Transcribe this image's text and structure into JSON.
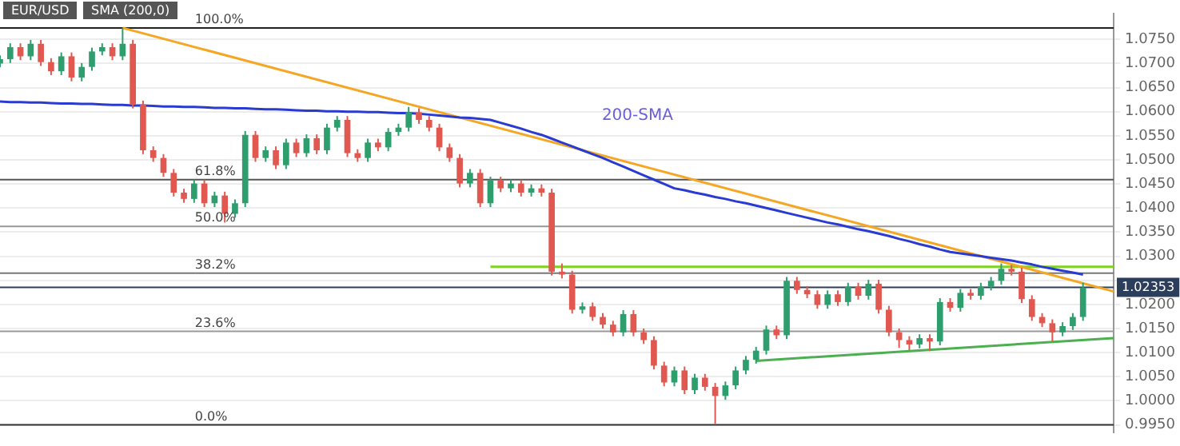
{
  "chart_data": {
    "type": "candlestick",
    "categories": [
      null,
      null,
      null,
      null,
      null,
      null,
      null,
      null,
      null,
      null,
      null,
      null,
      null,
      null,
      null,
      null,
      null,
      null,
      null,
      null,
      null,
      null,
      null,
      null,
      null,
      null,
      null,
      null,
      null,
      null,
      null,
      null,
      null,
      null,
      null,
      null,
      null,
      null,
      null,
      null,
      null,
      null,
      null,
      null,
      null,
      null,
      null,
      null,
      null,
      null,
      null,
      null,
      null,
      null,
      null,
      null,
      null,
      null,
      null,
      null,
      null,
      null,
      null,
      null,
      null,
      null,
      null,
      null,
      null,
      null,
      null,
      null,
      null,
      null,
      null,
      null,
      null,
      null,
      null,
      null,
      null,
      null,
      null,
      null,
      null,
      null,
      null,
      null,
      null,
      null,
      null,
      null,
      null,
      null,
      null,
      null,
      null,
      null,
      null,
      null,
      null,
      null,
      null,
      null,
      null,
      null,
      null,
      null,
      null,
      null
    ],
    "ohlc": [
      [
        1.07,
        1.0717,
        1.0692,
        1.0709
      ],
      [
        1.0709,
        1.0742,
        1.0701,
        1.0734
      ],
      [
        1.0734,
        1.0742,
        1.0707,
        1.0715
      ],
      [
        1.0715,
        1.0749,
        1.0707,
        1.0741
      ],
      [
        1.0741,
        1.0749,
        1.0695,
        1.0703
      ],
      [
        1.0703,
        1.0711,
        1.0676,
        1.0684
      ],
      [
        1.0684,
        1.0723,
        1.0676,
        1.0715
      ],
      [
        1.0715,
        1.0723,
        1.0663,
        1.0671
      ],
      [
        1.0671,
        1.0701,
        1.0663,
        1.0693
      ],
      [
        1.0693,
        1.0733,
        1.0685,
        1.0725
      ],
      [
        1.0725,
        1.0742,
        1.0717,
        1.0734
      ],
      [
        1.0734,
        1.0742,
        1.0707,
        1.0715
      ],
      [
        1.0715,
        1.0774,
        1.0707,
        1.0741
      ],
      [
        1.0741,
        1.0749,
        1.0607,
        1.0615
      ],
      [
        1.0615,
        1.0623,
        1.0512,
        1.052
      ],
      [
        1.052,
        1.0528,
        1.0496,
        1.0504
      ],
      [
        1.0504,
        1.0512,
        1.0465,
        1.0473
      ],
      [
        1.0473,
        1.0481,
        1.0424,
        1.0432
      ],
      [
        1.0432,
        1.044,
        1.0411,
        1.0419
      ],
      [
        1.0419,
        1.0459,
        1.0411,
        1.0451
      ],
      [
        1.0451,
        1.0459,
        1.0402,
        1.041
      ],
      [
        1.041,
        1.0434,
        1.0402,
        1.0426
      ],
      [
        1.0426,
        1.0434,
        1.037,
        1.0388
      ],
      [
        1.0388,
        1.0418,
        1.038,
        1.041
      ],
      [
        1.041,
        1.056,
        1.0402,
        1.0552
      ],
      [
        1.0552,
        1.056,
        1.0496,
        1.0504
      ],
      [
        1.0504,
        1.0528,
        1.0496,
        1.052
      ],
      [
        1.052,
        1.0528,
        1.0481,
        1.0489
      ],
      [
        1.0489,
        1.0544,
        1.0481,
        1.0536
      ],
      [
        1.0536,
        1.0544,
        1.0506,
        1.0514
      ],
      [
        1.0514,
        1.0553,
        1.0506,
        1.0545
      ],
      [
        1.0545,
        1.0553,
        1.0512,
        1.052
      ],
      [
        1.052,
        1.0575,
        1.0512,
        1.0567
      ],
      [
        1.0567,
        1.0591,
        1.0559,
        1.0583
      ],
      [
        1.0583,
        1.0591,
        1.0506,
        1.0514
      ],
      [
        1.0514,
        1.0522,
        1.0496,
        1.0504
      ],
      [
        1.0504,
        1.0544,
        1.0496,
        1.0536
      ],
      [
        1.0536,
        1.0544,
        1.0518,
        1.0526
      ],
      [
        1.0526,
        1.0566,
        1.0518,
        1.0558
      ],
      [
        1.0558,
        1.0575,
        1.055,
        1.0567
      ],
      [
        1.0567,
        1.061,
        1.0559,
        1.0599
      ],
      [
        1.0599,
        1.0607,
        1.0575,
        1.0583
      ],
      [
        1.0583,
        1.0591,
        1.0559,
        1.0567
      ],
      [
        1.0567,
        1.0575,
        1.0518,
        1.0526
      ],
      [
        1.0526,
        1.0534,
        1.0496,
        1.0504
      ],
      [
        1.0504,
        1.0512,
        1.0443,
        1.0451
      ],
      [
        1.0451,
        1.0481,
        1.0443,
        1.0473
      ],
      [
        1.0473,
        1.0481,
        1.0402,
        1.041
      ],
      [
        1.041,
        1.0465,
        1.0402,
        1.0457
      ],
      [
        1.0457,
        1.0465,
        1.0433,
        1.0441
      ],
      [
        1.0441,
        1.0459,
        1.0433,
        1.0451
      ],
      [
        1.0451,
        1.0459,
        1.0424,
        1.0432
      ],
      [
        1.0432,
        1.0449,
        1.0424,
        1.0441
      ],
      [
        1.0441,
        1.0449,
        1.0424,
        1.0432
      ],
      [
        1.0432,
        1.044,
        1.026,
        1.0268
      ],
      [
        1.0268,
        1.0285,
        1.0254,
        1.0262
      ],
      [
        1.0262,
        1.027,
        1.0181,
        1.0189
      ],
      [
        1.0189,
        1.0204,
        1.0181,
        1.0196
      ],
      [
        1.0196,
        1.0204,
        1.0166,
        1.0174
      ],
      [
        1.0174,
        1.0182,
        1.015,
        1.0158
      ],
      [
        1.0158,
        1.0166,
        1.0134,
        1.0142
      ],
      [
        1.0142,
        1.0188,
        1.0134,
        1.018
      ],
      [
        1.018,
        1.0188,
        1.0134,
        1.0142
      ],
      [
        1.0142,
        1.015,
        1.0118,
        1.0126
      ],
      [
        1.0126,
        1.0134,
        1.0065,
        1.0073
      ],
      [
        1.0073,
        1.0081,
        1.003,
        1.0038
      ],
      [
        1.0038,
        1.0071,
        1.003,
        1.0063
      ],
      [
        1.0063,
        1.0071,
        1.0014,
        1.0022
      ],
      [
        1.0022,
        1.0056,
        1.0014,
        1.0048
      ],
      [
        1.0048,
        1.0056,
        1.0021,
        1.0029
      ],
      [
        1.0029,
        1.0037,
        0.9952,
        1.001
      ],
      [
        1.001,
        1.004,
        1.0002,
        1.0032
      ],
      [
        1.0032,
        1.0071,
        1.0024,
        1.0063
      ],
      [
        1.0063,
        1.0093,
        1.0055,
        1.0085
      ],
      [
        1.0085,
        1.0112,
        1.0077,
        1.0104
      ],
      [
        1.0104,
        1.0156,
        1.0096,
        1.0148
      ],
      [
        1.0148,
        1.0156,
        1.0128,
        1.0136
      ],
      [
        1.0136,
        1.0257,
        1.0128,
        1.0249
      ],
      [
        1.0249,
        1.0257,
        1.0222,
        1.023
      ],
      [
        1.023,
        1.0238,
        1.0213,
        1.0221
      ],
      [
        1.0221,
        1.0229,
        1.0191,
        1.0199
      ],
      [
        1.0199,
        1.0229,
        1.0191,
        1.0221
      ],
      [
        1.0221,
        1.0229,
        1.0197,
        1.0205
      ],
      [
        1.0205,
        1.0245,
        1.0197,
        1.0237
      ],
      [
        1.0237,
        1.0245,
        1.021,
        1.0218
      ],
      [
        1.0218,
        1.0251,
        1.021,
        1.0243
      ],
      [
        1.0243,
        1.0251,
        1.0181,
        1.0189
      ],
      [
        1.0189,
        1.0197,
        1.0134,
        1.0142
      ],
      [
        1.0142,
        1.015,
        1.011,
        1.0126
      ],
      [
        1.0126,
        1.0134,
        1.0105,
        1.0117
      ],
      [
        1.0117,
        1.0138,
        1.0109,
        1.013
      ],
      [
        1.013,
        1.0138,
        1.0103,
        1.0123
      ],
      [
        1.0123,
        1.0213,
        1.0115,
        1.0205
      ],
      [
        1.0205,
        1.0213,
        1.0185,
        1.0193
      ],
      [
        1.0193,
        1.0232,
        1.0185,
        1.0224
      ],
      [
        1.0224,
        1.0232,
        1.021,
        1.0218
      ],
      [
        1.0218,
        1.0245,
        1.021,
        1.0237
      ],
      [
        1.0237,
        1.0257,
        1.0229,
        1.0249
      ],
      [
        1.0249,
        1.0285,
        1.0241,
        1.0274
      ],
      [
        1.0274,
        1.0282,
        1.026,
        1.0268
      ],
      [
        1.0268,
        1.0276,
        1.0203,
        1.0211
      ],
      [
        1.0211,
        1.0219,
        1.0166,
        1.0174
      ],
      [
        1.0174,
        1.0182,
        1.0153,
        1.0161
      ],
      [
        1.0161,
        1.0169,
        1.0122,
        1.0142
      ],
      [
        1.0142,
        1.0163,
        1.0134,
        1.0155
      ],
      [
        1.0155,
        1.0182,
        1.0147,
        1.0174
      ],
      [
        1.0174,
        1.0245,
        1.0166,
        1.0235
      ],
      null,
      null,
      null
    ],
    "series": [
      {
        "type": "line",
        "name": "200-SMA",
        "color": "#2a3bd1",
        "values": [
          1.0621,
          1.062,
          1.062,
          1.0619,
          1.0619,
          1.0618,
          1.0617,
          1.0617,
          1.0616,
          1.0616,
          1.0615,
          1.0614,
          1.0614,
          1.0613,
          1.0613,
          1.0612,
          1.0611,
          1.0611,
          1.061,
          1.061,
          1.0609,
          1.0608,
          1.0608,
          1.0607,
          1.0607,
          1.0606,
          1.0605,
          1.0605,
          1.0604,
          1.0603,
          1.0602,
          1.0602,
          1.0601,
          1.0601,
          1.06,
          1.06,
          1.0599,
          1.0599,
          1.0598,
          1.0597,
          1.0597,
          1.0596,
          1.0594,
          1.0592,
          1.059,
          1.0588,
          1.0587,
          1.0585,
          1.0583,
          1.0577,
          1.0571,
          1.0565,
          1.0558,
          1.0552,
          1.0544,
          1.0536,
          1.0528,
          1.052,
          1.0512,
          1.0504,
          1.0495,
          1.0486,
          1.0477,
          1.0468,
          1.0459,
          1.045,
          1.0441,
          1.0437,
          1.0432,
          1.0428,
          1.0423,
          1.0419,
          1.0414,
          1.041,
          1.0405,
          1.04,
          1.0395,
          1.039,
          1.0385,
          1.038,
          1.0375,
          1.037,
          1.0366,
          1.0361,
          1.0356,
          1.0352,
          1.0347,
          1.0342,
          1.0336,
          1.0331,
          1.0325,
          1.032,
          1.0314,
          1.0309,
          1.0306,
          1.0303,
          1.03,
          1.0297,
          1.0294,
          1.0291,
          1.0287,
          1.0283,
          1.0278,
          1.0274,
          1.027,
          1.0266,
          1.0262,
          null,
          null,
          null
        ]
      },
      {
        "type": "line",
        "color": "#f5a623",
        "values": [
          null,
          null,
          null,
          null,
          null,
          null,
          null,
          null,
          null,
          null,
          null,
          null,
          1.0774,
          null,
          null,
          null,
          null,
          null,
          null,
          null,
          null,
          null,
          null,
          null,
          null,
          null,
          null,
          null,
          null,
          null,
          null,
          null,
          null,
          null,
          null,
          null,
          null,
          null,
          null,
          null,
          null,
          null,
          null,
          null,
          null,
          null,
          null,
          null,
          null,
          null,
          null,
          null,
          null,
          null,
          null,
          null,
          null,
          null,
          null,
          null,
          null,
          null,
          null,
          null,
          null,
          null,
          null,
          null,
          null,
          null,
          null,
          null,
          null,
          null,
          null,
          null,
          null,
          null,
          null,
          null,
          null,
          null,
          null,
          null,
          null,
          null,
          null,
          null,
          null,
          null,
          null,
          null,
          null,
          null,
          null,
          null,
          null,
          null,
          null,
          null,
          null,
          null,
          null,
          null,
          null,
          null,
          null,
          null,
          null,
          1.0227
        ]
      },
      {
        "type": "line",
        "color": "#7ed321",
        "values": [
          null,
          null,
          null,
          null,
          null,
          null,
          null,
          null,
          null,
          null,
          null,
          null,
          null,
          null,
          null,
          null,
          null,
          null,
          null,
          null,
          null,
          null,
          null,
          null,
          null,
          null,
          null,
          null,
          null,
          null,
          null,
          null,
          null,
          null,
          null,
          null,
          null,
          null,
          null,
          null,
          null,
          null,
          null,
          null,
          null,
          null,
          null,
          null,
          1.0278,
          null,
          null,
          null,
          null,
          null,
          null,
          null,
          null,
          null,
          null,
          null,
          null,
          null,
          null,
          null,
          null,
          null,
          null,
          null,
          null,
          null,
          null,
          null,
          null,
          null,
          null,
          null,
          null,
          null,
          null,
          null,
          null,
          null,
          null,
          null,
          null,
          null,
          null,
          null,
          null,
          null,
          null,
          null,
          null,
          null,
          null,
          null,
          null,
          null,
          null,
          null,
          null,
          null,
          null,
          null,
          null,
          null,
          null,
          null,
          null,
          1.0278
        ]
      },
      {
        "type": "line",
        "color": "#4caf50",
        "values": [
          null,
          null,
          null,
          null,
          null,
          null,
          null,
          null,
          null,
          null,
          null,
          null,
          null,
          null,
          null,
          null,
          null,
          null,
          null,
          null,
          null,
          null,
          null,
          null,
          null,
          null,
          null,
          null,
          null,
          null,
          null,
          null,
          null,
          null,
          null,
          null,
          null,
          null,
          null,
          null,
          null,
          null,
          null,
          null,
          null,
          null,
          null,
          null,
          null,
          null,
          null,
          null,
          null,
          null,
          null,
          null,
          null,
          null,
          null,
          null,
          null,
          null,
          null,
          null,
          null,
          null,
          null,
          null,
          null,
          null,
          null,
          null,
          null,
          null,
          1.0083,
          null,
          null,
          null,
          null,
          null,
          null,
          null,
          null,
          null,
          null,
          null,
          null,
          null,
          null,
          null,
          null,
          null,
          null,
          null,
          null,
          null,
          null,
          null,
          null,
          null,
          null,
          null,
          null,
          null,
          null,
          null,
          null,
          null,
          null,
          1.013
        ]
      }
    ],
    "ylim": [
      0.9934,
      1.0804
    ],
    "yticks": [
      {
        "value": 0.995,
        "label": "0.9950"
      },
      {
        "value": 1.0,
        "label": "1.0000"
      },
      {
        "value": 1.005,
        "label": "1.0050"
      },
      {
        "value": 1.01,
        "label": "1.0100"
      },
      {
        "value": 1.015,
        "label": "1.0150"
      },
      {
        "value": 1.02,
        "label": "1.0200"
      },
      {
        "value": 1.025,
        "label": null
      },
      {
        "value": 1.03,
        "label": "1.0300"
      },
      {
        "value": 1.035,
        "label": "1.0350"
      },
      {
        "value": 1.04,
        "label": "1.0400"
      },
      {
        "value": 1.045,
        "label": "1.0450"
      },
      {
        "value": 1.05,
        "label": "1.0500"
      },
      {
        "value": 1.055,
        "label": "1.0550"
      },
      {
        "value": 1.06,
        "label": "1.0600"
      },
      {
        "value": 1.065,
        "label": "1.0650"
      },
      {
        "value": 1.07,
        "label": "1.0700"
      },
      {
        "value": 1.075,
        "label": "1.0750"
      }
    ],
    "ref_lines": [
      {
        "axis": "y",
        "value": 1.0774,
        "color": "#222222"
      },
      {
        "axis": "y",
        "value": 1.0459,
        "color": "#555555"
      },
      {
        "axis": "y",
        "value": 1.0362,
        "color": "#999999"
      },
      {
        "axis": "y",
        "value": 1.0265,
        "color": "#777777"
      },
      {
        "axis": "y",
        "value": 1.0144,
        "color": "#999999"
      },
      {
        "axis": "y",
        "value": 0.995,
        "color": "#333333"
      },
      {
        "axis": "y",
        "value": 1.02353,
        "label": "1.02353",
        "color": "#2c3e5c"
      }
    ],
    "annotations": [
      "EUR/USD",
      "SMA (200,0)",
      {
        "text": "100.0%",
        "y": 1.0774
      },
      {
        "text": "61.8%",
        "y": 1.0459
      },
      {
        "text": "50.0%",
        "y": 1.0362
      },
      {
        "text": "38.2%",
        "y": 1.0265
      },
      {
        "text": "23.6%",
        "y": 1.0144
      },
      {
        "text": "0.0%",
        "y": 0.995
      }
    ],
    "grid": "y",
    "tick_labels": "y"
  }
}
